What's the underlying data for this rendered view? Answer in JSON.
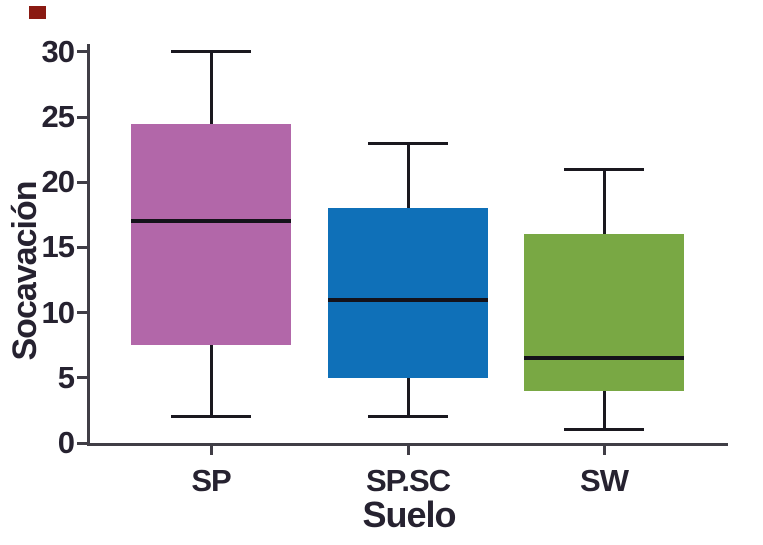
{
  "chart_data": {
    "type": "boxplot",
    "title": "",
    "xlabel": "Suelo",
    "ylabel": "Socavación",
    "categories": [
      "SP",
      "SP.SC",
      "SW"
    ],
    "series": [
      {
        "name": "SP",
        "min": 2,
        "q1": 7.5,
        "median": 17,
        "q3": 24.5,
        "max": 30,
        "color": "#b267a9"
      },
      {
        "name": "SP.SC",
        "min": 2,
        "q1": 5,
        "median": 11,
        "q3": 18,
        "max": 23,
        "color": "#0f70b8"
      },
      {
        "name": "SW",
        "min": 1,
        "q1": 4,
        "median": 6.5,
        "q3": 16,
        "max": 21,
        "color": "#79a844"
      }
    ],
    "yticks": [
      0,
      5,
      10,
      15,
      20,
      25,
      30
    ],
    "ylim": [
      0,
      30.6
    ],
    "grid": false,
    "legend": null,
    "axis_color": "#403e46",
    "whisker_color": "#1a181f",
    "median_color": "#14121a",
    "text_color": "#262230"
  },
  "corner_marker": {
    "color": "#8a1a12"
  }
}
